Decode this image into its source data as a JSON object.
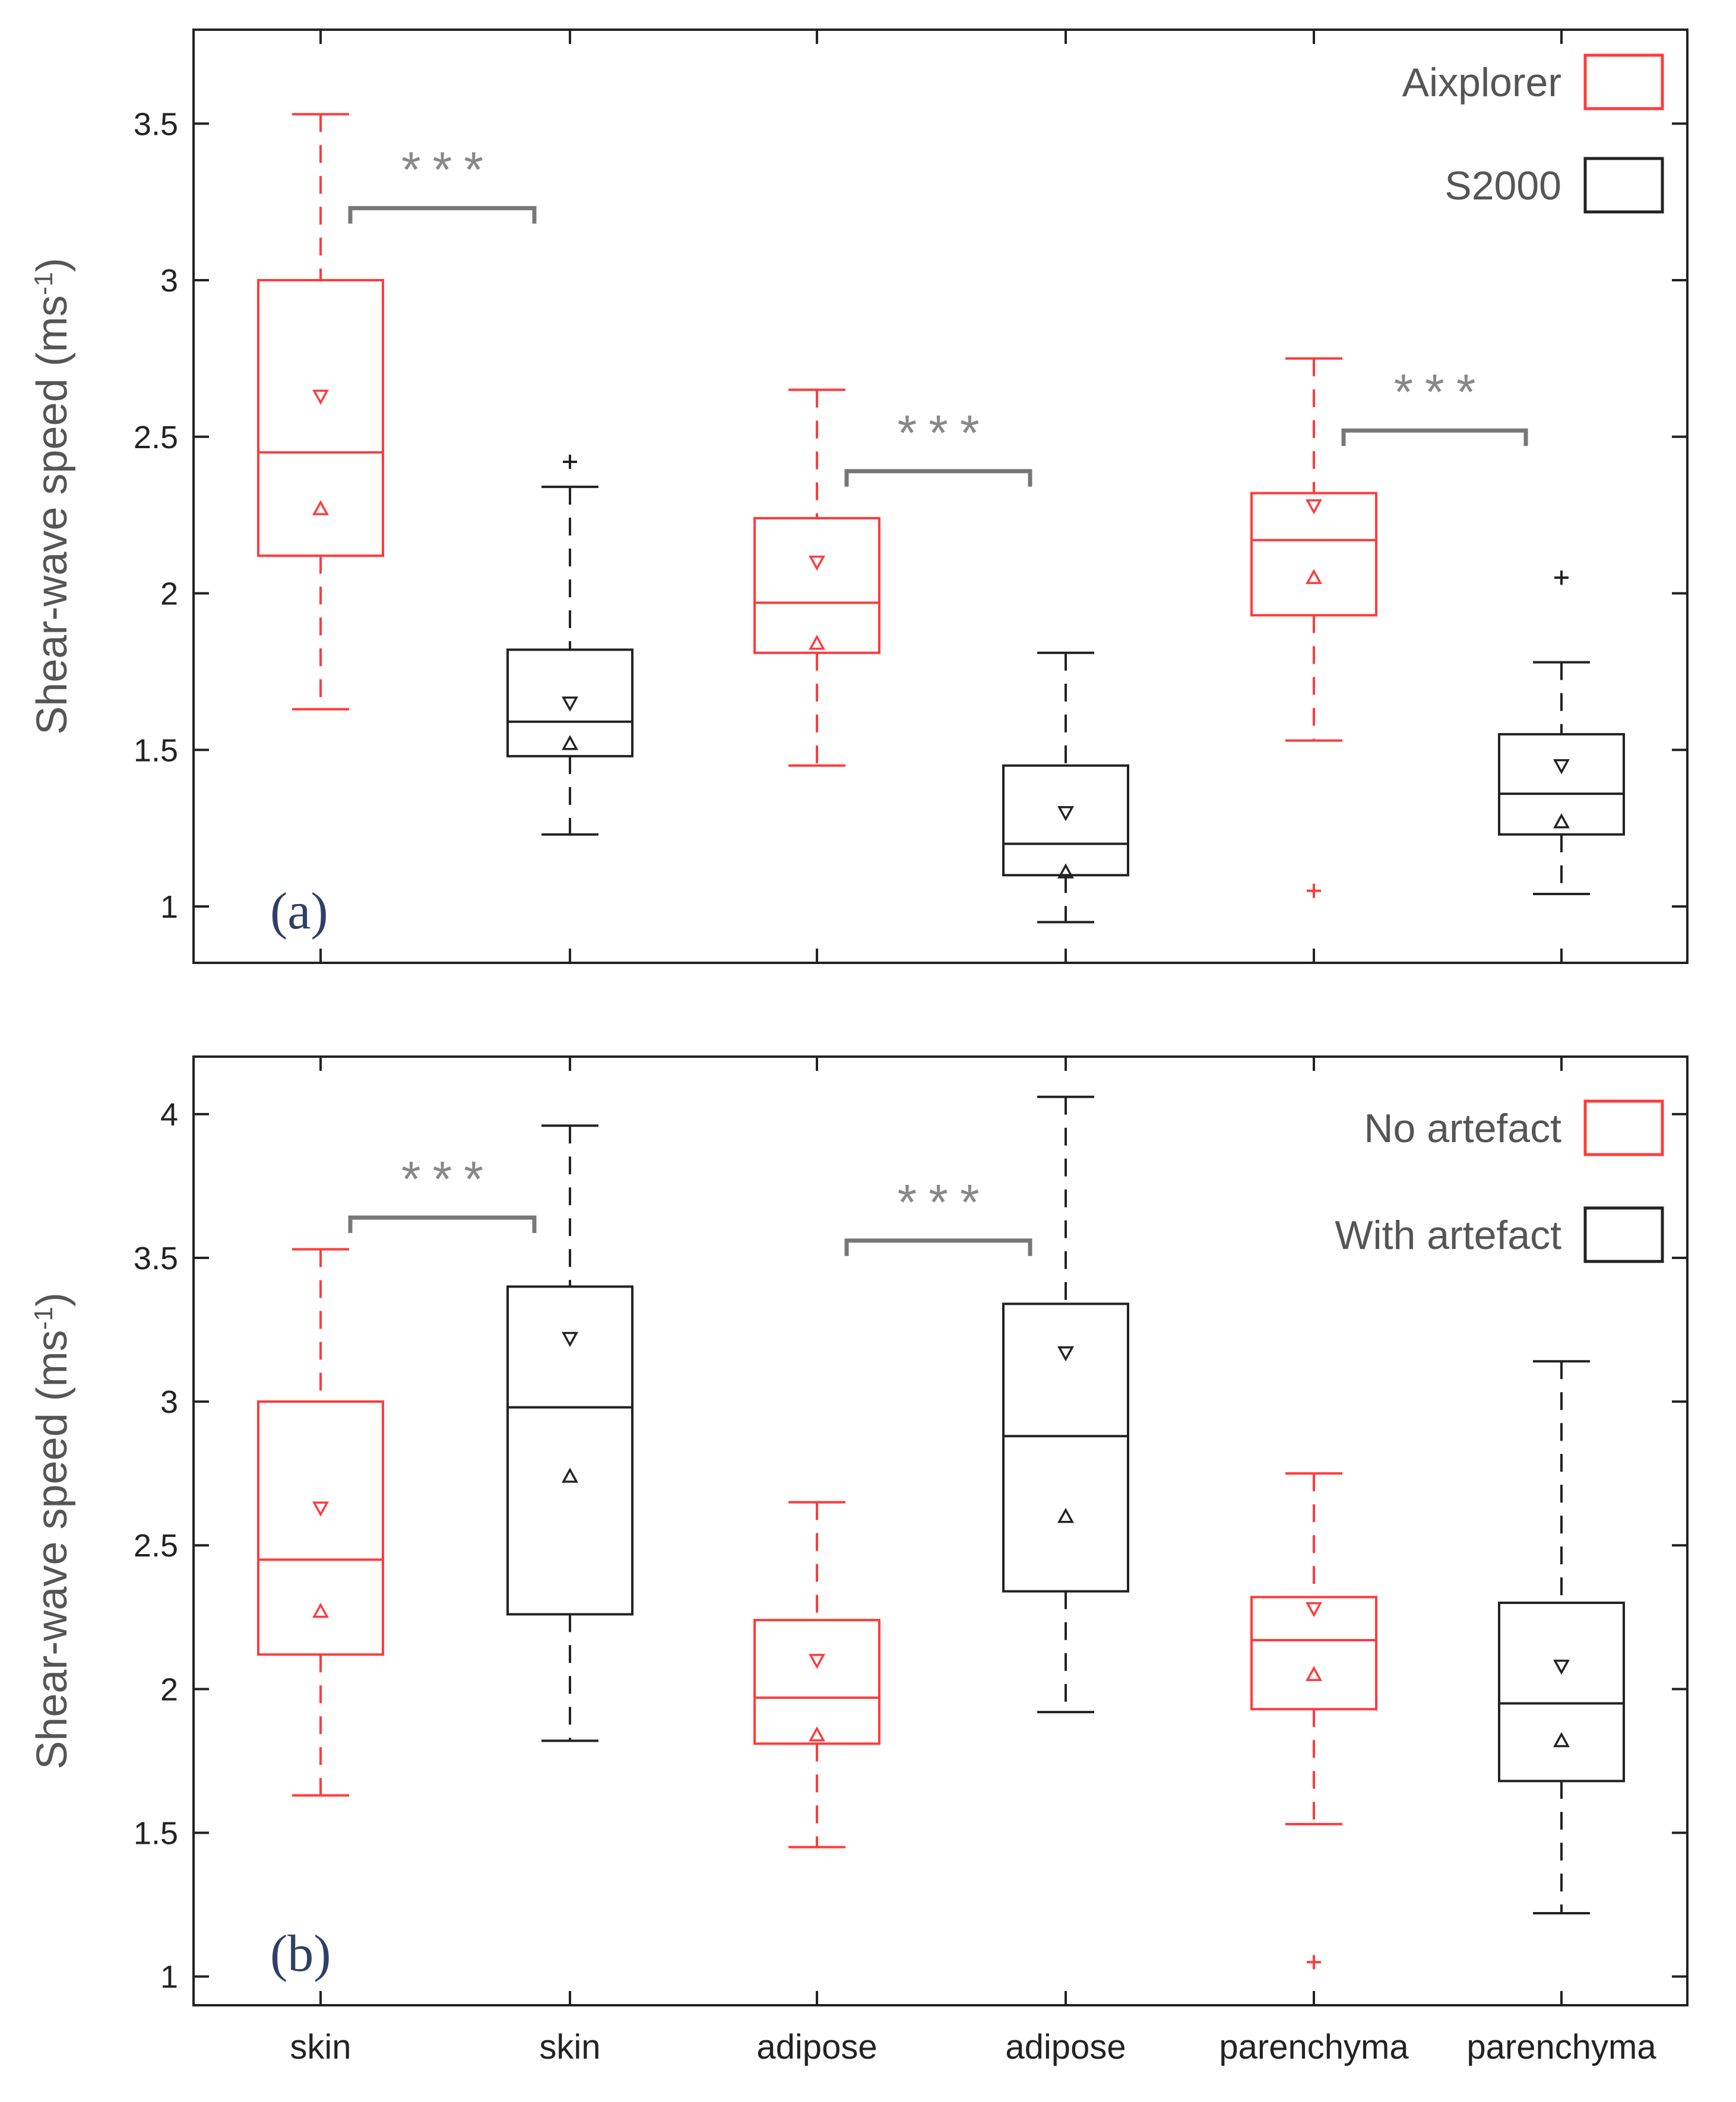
{
  "colors": {
    "red": "#ff3b3b",
    "black": "#222222",
    "bracket": "#777777",
    "tag": "#2f3f66"
  },
  "chart_data": [
    {
      "type": "box",
      "panel": "(a)",
      "ylabel": "Shear-wave speed (ms",
      "ylabel_sup": "-1",
      "ylim": [
        0.82,
        3.8
      ],
      "yticks": [
        1,
        1.5,
        2,
        2.5,
        3,
        3.5
      ],
      "ytick_labels": [
        "1",
        "1.5",
        "2",
        "2.5",
        "3",
        "3.5"
      ],
      "legend": {
        "placement": "top-right",
        "entries": [
          {
            "label": "Aixplorer",
            "color": "red"
          },
          {
            "label": "S2000",
            "color": "black"
          }
        ]
      },
      "boxes": [
        {
          "category": "skin",
          "color": "red",
          "whisker_low": 1.63,
          "q1": 2.12,
          "median": 2.45,
          "q3": 3.0,
          "whisker_high": 3.53,
          "tri_down": 2.63,
          "tri_up": 2.27,
          "outliers": []
        },
        {
          "category": "skin",
          "color": "black",
          "whisker_low": 1.23,
          "q1": 1.48,
          "median": 1.59,
          "q3": 1.82,
          "whisker_high": 2.34,
          "tri_down": 1.65,
          "tri_up": 1.52,
          "outliers": [
            2.42
          ]
        },
        {
          "category": "adipose",
          "color": "red",
          "whisker_low": 1.45,
          "q1": 1.81,
          "median": 1.97,
          "q3": 2.24,
          "whisker_high": 2.65,
          "tri_down": 2.1,
          "tri_up": 1.84,
          "outliers": []
        },
        {
          "category": "adipose",
          "color": "black",
          "whisker_low": 0.95,
          "q1": 1.1,
          "median": 1.2,
          "q3": 1.45,
          "whisker_high": 1.81,
          "tri_down": 1.3,
          "tri_up": 1.11,
          "outliers": []
        },
        {
          "category": "parenchyma",
          "color": "red",
          "whisker_low": 1.53,
          "q1": 1.93,
          "median": 2.17,
          "q3": 2.32,
          "whisker_high": 2.75,
          "tri_down": 2.28,
          "tri_up": 2.05,
          "outliers": [
            1.05
          ]
        },
        {
          "category": "parenchyma",
          "color": "black",
          "whisker_low": 1.04,
          "q1": 1.23,
          "median": 1.36,
          "q3": 1.55,
          "whisker_high": 1.78,
          "tri_down": 1.45,
          "tri_up": 1.27,
          "outliers": [
            2.05
          ]
        }
      ],
      "significance": [
        {
          "from": 0,
          "to": 1,
          "y": 3.23,
          "label": "***"
        },
        {
          "from": 2,
          "to": 3,
          "y": 2.39,
          "label": "***"
        },
        {
          "from": 4,
          "to": 5,
          "y": 2.52,
          "label": "***"
        }
      ]
    },
    {
      "type": "box",
      "panel": "(b)",
      "ylabel": "Shear-wave speed (ms",
      "ylabel_sup": "-1",
      "ylim": [
        0.9,
        4.2
      ],
      "yticks": [
        1,
        1.5,
        2,
        2.5,
        3,
        3.5,
        4
      ],
      "ytick_labels": [
        "1",
        "1.5",
        "2",
        "2.5",
        "3",
        "3.5",
        "4"
      ],
      "categories": [
        "skin",
        "skin",
        "adipose",
        "adipose",
        "parenchyma",
        "parenchyma"
      ],
      "legend": {
        "placement": "top-right",
        "entries": [
          {
            "label": "No artefact",
            "color": "red"
          },
          {
            "label": "With artefact",
            "color": "black"
          }
        ]
      },
      "boxes": [
        {
          "category": "skin",
          "color": "red",
          "whisker_low": 1.63,
          "q1": 2.12,
          "median": 2.45,
          "q3": 3.0,
          "whisker_high": 3.53,
          "tri_down": 2.63,
          "tri_up": 2.27,
          "outliers": []
        },
        {
          "category": "skin",
          "color": "black",
          "whisker_low": 1.82,
          "q1": 2.26,
          "median": 2.98,
          "q3": 3.4,
          "whisker_high": 3.96,
          "tri_down": 3.22,
          "tri_up": 2.74,
          "outliers": []
        },
        {
          "category": "adipose",
          "color": "red",
          "whisker_low": 1.45,
          "q1": 1.81,
          "median": 1.97,
          "q3": 2.24,
          "whisker_high": 2.65,
          "tri_down": 2.1,
          "tri_up": 1.84,
          "outliers": []
        },
        {
          "category": "adipose",
          "color": "black",
          "whisker_low": 1.92,
          "q1": 2.34,
          "median": 2.88,
          "q3": 3.34,
          "whisker_high": 4.06,
          "tri_down": 3.17,
          "tri_up": 2.6,
          "outliers": []
        },
        {
          "category": "parenchyma",
          "color": "red",
          "whisker_low": 1.53,
          "q1": 1.93,
          "median": 2.17,
          "q3": 2.32,
          "whisker_high": 2.75,
          "tri_down": 2.28,
          "tri_up": 2.05,
          "outliers": [
            1.05
          ]
        },
        {
          "category": "parenchyma",
          "color": "black",
          "whisker_low": 1.22,
          "q1": 1.68,
          "median": 1.95,
          "q3": 2.3,
          "whisker_high": 3.14,
          "tri_down": 2.08,
          "tri_up": 1.82,
          "outliers": []
        }
      ],
      "significance": [
        {
          "from": 0,
          "to": 1,
          "y": 3.64,
          "label": "***"
        },
        {
          "from": 2,
          "to": 3,
          "y": 3.56,
          "label": "***"
        }
      ]
    }
  ]
}
